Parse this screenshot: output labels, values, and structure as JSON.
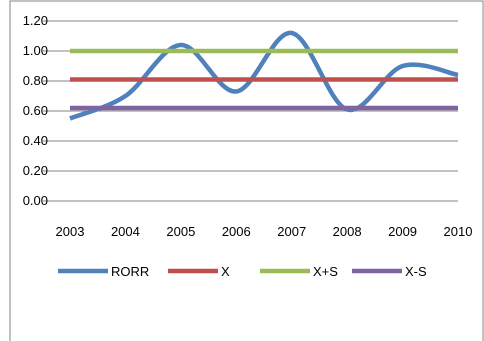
{
  "chart_data": {
    "type": "line",
    "x": [
      "2003",
      "2004",
      "2005",
      "2006",
      "2007",
      "2008",
      "2009",
      "2010"
    ],
    "ylim": [
      0,
      1.2
    ],
    "yticks": [
      "0.00",
      "0.20",
      "0.40",
      "0.60",
      "0.80",
      "1.00",
      "1.20"
    ],
    "grid": "horizontal",
    "legend_position": "bottom",
    "series": [
      {
        "name": "RORR",
        "color": "#4f81bd",
        "smooth": true,
        "values": [
          0.55,
          0.7,
          1.04,
          0.73,
          1.12,
          0.61,
          0.9,
          0.84
        ]
      },
      {
        "name": "X",
        "color": "#c0504d",
        "values": [
          0.81,
          0.81,
          0.81,
          0.81,
          0.81,
          0.81,
          0.81,
          0.81
        ]
      },
      {
        "name": "X+S",
        "color": "#9bbb59",
        "values": [
          1.0,
          1.0,
          1.0,
          1.0,
          1.0,
          1.0,
          1.0,
          1.0
        ]
      },
      {
        "name": "X-S",
        "color": "#8064a2",
        "values": [
          0.62,
          0.62,
          0.62,
          0.62,
          0.62,
          0.62,
          0.62,
          0.62
        ]
      }
    ]
  }
}
